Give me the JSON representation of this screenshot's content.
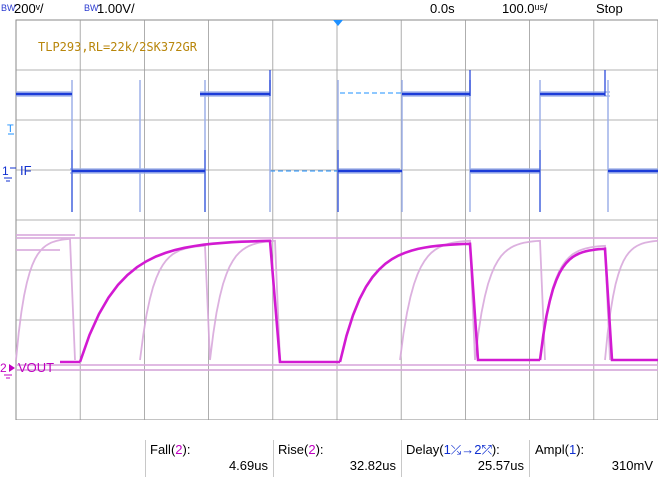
{
  "header": {
    "ch1_bw": "BW",
    "ch1_scale": "200ᵛ/",
    "ch2_bw": "BW",
    "ch2_scale": "1.00V/",
    "time_offset": "0.0s",
    "time_scale": "100.0ᵘˢ/",
    "run_state": "Stop"
  },
  "screen": {
    "title_annotation": "TLP293,RL=22k/2SK372GR",
    "ch1_label": "IF",
    "ch2_label": "VOUT",
    "trigger_marker": "T",
    "ch1_marker": "1",
    "ch2_marker": "2"
  },
  "measurements": [
    {
      "label_prefix": "Fall(",
      "source": "2",
      "label_suffix": "):",
      "value": "4.69us"
    },
    {
      "label_prefix": "Rise(",
      "source": "2",
      "label_suffix": "):",
      "value": "32.82us"
    },
    {
      "label_prefix": "Delay(",
      "source": "1⤰→2⤱",
      "label_suffix": "):",
      "value": "25.57us"
    },
    {
      "label_prefix": "Ampl(",
      "source": "1",
      "label_suffix": "):",
      "value": "310mV"
    }
  ],
  "colors": {
    "ch1_trace": "#1c3cd8",
    "ch1_persist": "#9aaee8",
    "ch2_trace": "#d21ad2",
    "ch2_persist": "#d8a8dc",
    "annotation": "#b8860b",
    "trigger": "#1e90ff"
  }
}
